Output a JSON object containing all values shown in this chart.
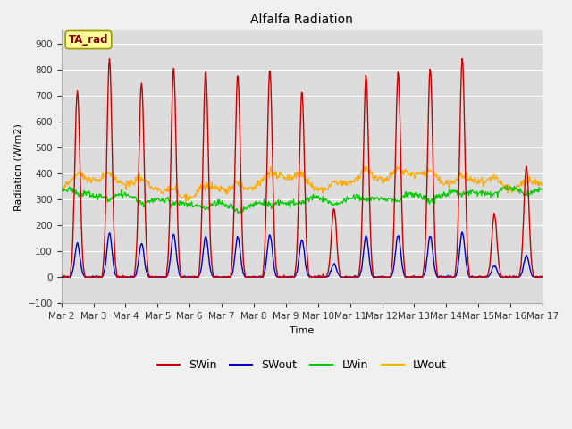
{
  "title": "Alfalfa Radiation",
  "xlabel": "Time",
  "ylabel": "Radiation (W/m2)",
  "ylim": [
    -100,
    950
  ],
  "yticks": [
    -100,
    0,
    100,
    200,
    300,
    400,
    500,
    600,
    700,
    800,
    900
  ],
  "x_tick_labels": [
    "Mar 2",
    "Mar 3",
    "Mar 4",
    "Mar 5",
    "Mar 6",
    "Mar 7",
    "Mar 8",
    "Mar 9",
    "Mar 10",
    "Mar 11",
    "Mar 12",
    "Mar 13",
    "Mar 14",
    "Mar 15",
    "Mar 16",
    "Mar 17"
  ],
  "legend_labels": [
    "SWin",
    "SWout",
    "LWin",
    "LWout"
  ],
  "colors": {
    "SWin": "#cc0000",
    "SWout": "#0000cc",
    "LWin": "#00cc00",
    "LWout": "#ffaa00"
  },
  "fig_bg": "#f0f0f0",
  "axes_bg": "#dcdcdc",
  "annotation_box_color": "#ffff99",
  "annotation_text": "TA_rad",
  "annotation_text_color": "#880000",
  "annotation_edge_color": "#999900"
}
